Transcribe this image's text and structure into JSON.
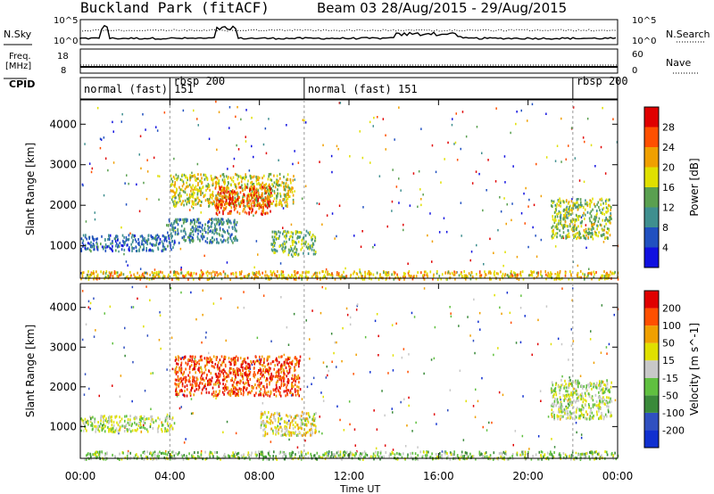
{
  "header": {
    "title": "Buckland Park (fitACF)",
    "beam_info": "Beam 03 28/Aug/2015 - 29/Aug/2015"
  },
  "summary_panels": {
    "nsky_label": "N.Sky",
    "nsky_ticks": [
      "10^5",
      "10^0"
    ],
    "nsearch_label": "N.Search",
    "nsearch_ticks": [
      "10^5",
      "10^0"
    ],
    "freq_label": "Freq.",
    "freq_unit": "[MHz]",
    "freq_ticks": [
      "18",
      "8"
    ],
    "nave_label": "Nave",
    "nave_ticks": [
      "60",
      "0"
    ],
    "cpid_label": "CPID"
  },
  "cpid_segments": [
    {
      "label": "normal (fast) 151",
      "start_hour": 0,
      "end_hour": 4
    },
    {
      "label": "rbsp 200",
      "start_hour": 4,
      "end_hour": 10
    },
    {
      "label": "normal (fast) 151",
      "start_hour": 10,
      "end_hour": 22
    },
    {
      "label": "rbsp 200",
      "start_hour": 22,
      "end_hour": 24
    }
  ],
  "chart_data": [
    {
      "type": "heatmap",
      "name": "power",
      "ylabel": "Slant Range [km]",
      "yticks": [
        "1000",
        "2000",
        "3000",
        "4000"
      ],
      "ylim": [
        200,
        4600
      ],
      "colorbar_label": "Power [dB]",
      "colorbar_ticks": [
        "4",
        "8",
        "12",
        "16",
        "20",
        "24",
        "28"
      ],
      "colorbar_range": [
        0,
        32
      ],
      "colorbar_colors": [
        "#1010e0",
        "#2050c0",
        "#3f8f8f",
        "#5aa050",
        "#e0e000",
        "#f0a000",
        "#ff5000",
        "#e00000"
      ],
      "regions": [
        {
          "x": [
            0.0,
            4.2
          ],
          "y": [
            900,
            1300
          ],
          "value": 8
        },
        {
          "x": [
            3.8,
            7.0
          ],
          "y": [
            1100,
            1700
          ],
          "value": 10
        },
        {
          "x": [
            4.0,
            9.5
          ],
          "y": [
            2000,
            2800
          ],
          "value": 18
        },
        {
          "x": [
            6.0,
            8.5
          ],
          "y": [
            1800,
            2500
          ],
          "value": 26
        },
        {
          "x": [
            8.5,
            10.5
          ],
          "y": [
            800,
            1400
          ],
          "value": 14
        },
        {
          "x": [
            21.0,
            23.7
          ],
          "y": [
            1200,
            2200
          ],
          "value": 16
        },
        {
          "x": [
            0.0,
            24.0
          ],
          "y": [
            200,
            400
          ],
          "value": 20
        }
      ]
    },
    {
      "type": "heatmap",
      "name": "velocity",
      "ylabel": "Slant Range [km]",
      "yticks": [
        "1000",
        "2000",
        "3000",
        "4000"
      ],
      "ylim": [
        200,
        4600
      ],
      "colorbar_label": "Velocity [m s^-1]",
      "colorbar_ticks": [
        "200",
        "100",
        "50",
        "15",
        "-15",
        "-50",
        "-100",
        "-200"
      ],
      "colorbar_range": [
        -250,
        250
      ],
      "colorbar_colors": [
        "#1030d0",
        "#3050c0",
        "#3a8a3a",
        "#60c040",
        "#c8c8c8",
        "#e0e000",
        "#f0a000",
        "#ff5000",
        "#e00000"
      ],
      "regions": [
        {
          "x": [
            0.0,
            4.2
          ],
          "y": [
            900,
            1300
          ],
          "value": 0
        },
        {
          "x": [
            4.2,
            9.8
          ],
          "y": [
            1800,
            2800
          ],
          "value": 180
        },
        {
          "x": [
            8.0,
            10.5
          ],
          "y": [
            800,
            1400
          ],
          "value": 40
        },
        {
          "x": [
            21.0,
            23.7
          ],
          "y": [
            1200,
            2200
          ],
          "value": 0
        },
        {
          "x": [
            0.0,
            24.0
          ],
          "y": [
            200,
            400
          ],
          "value": -30
        }
      ]
    }
  ],
  "xaxis": {
    "label": "Time UT",
    "ticks": [
      "00:00",
      "04:00",
      "08:00",
      "12:00",
      "16:00",
      "20:00",
      "00:00"
    ]
  }
}
